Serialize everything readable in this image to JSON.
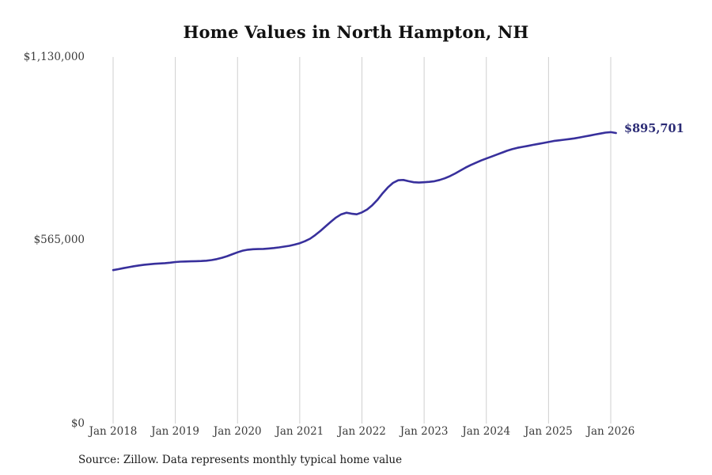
{
  "source_note": "Source: Zillow. Data represents monthly typical home value",
  "colors": {
    "line": "#38309c",
    "end_label": "#2b2b75",
    "grid": "#cfcfcf",
    "axis_text": "#3b3b3b"
  },
  "chart_data": {
    "type": "line",
    "title": "Home Values in North Hampton, NH",
    "xlabel": "",
    "ylabel": "",
    "ylim": [
      0,
      1130000
    ],
    "grid": "vertical-only",
    "legend": "none",
    "end_value_label": "$895,701",
    "end_value": 895701,
    "x_tick_labels": [
      "Jan 2018",
      "Jan 2019",
      "Jan 2020",
      "Jan 2021",
      "Jan 2022",
      "Jan 2023",
      "Jan 2024",
      "Jan 2025",
      "Jan 2026"
    ],
    "y_tick_labels": [
      "$0",
      "$565,000",
      "$1,130,000"
    ],
    "x_start": "2018-01",
    "x_end": "2026-02",
    "cadence": "monthly",
    "series": [
      {
        "name": "Typical home value",
        "values": [
          473000,
          476000,
          479000,
          482000,
          485000,
          487500,
          489500,
          491000,
          492500,
          493500,
          494500,
          496000,
          498000,
          499000,
          499500,
          500000,
          500500,
          501000,
          502000,
          504000,
          507000,
          511000,
          516000,
          522000,
          528000,
          533000,
          536000,
          537500,
          538000,
          538500,
          539500,
          541000,
          543000,
          545500,
          548000,
          551500,
          556000,
          562000,
          570000,
          581000,
          594000,
          608000,
          622000,
          635000,
          645000,
          650000,
          647000,
          645000,
          651000,
          660000,
          673000,
          690000,
          710000,
          728000,
          742000,
          750000,
          751000,
          747000,
          744000,
          743000,
          744000,
          745000,
          747000,
          751000,
          756000,
          763000,
          771000,
          780000,
          789000,
          797000,
          804000,
          811000,
          817000,
          823000,
          829000,
          835000,
          841000,
          846000,
          850000,
          853000,
          856000,
          859000,
          862000,
          865000,
          868000,
          871000,
          873000,
          875000,
          877000,
          879000,
          882000,
          885000,
          888000,
          891000,
          894000,
          897000,
          898500,
          895701
        ]
      }
    ]
  }
}
